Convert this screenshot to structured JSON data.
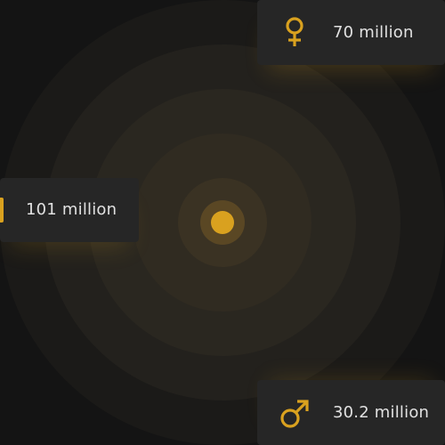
{
  "colors": {
    "accent": "#d9a11f",
    "background": "#141414",
    "card": "#262626",
    "text": "#e1e1e1"
  },
  "cards": {
    "female": {
      "icon": "female-symbol-icon",
      "value": "70 million"
    },
    "total": {
      "icon": "bar-marker",
      "value": "101 million"
    },
    "male": {
      "icon": "male-symbol-icon",
      "value": "30.2 million"
    }
  }
}
